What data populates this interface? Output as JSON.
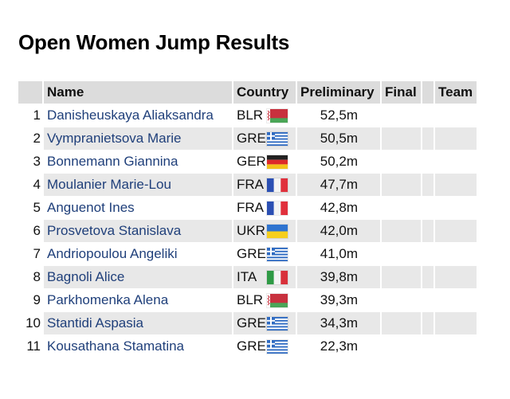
{
  "page": {
    "title": "Open Women Jump Results"
  },
  "table": {
    "headers": {
      "rank": "",
      "name": "Name",
      "country": "Country",
      "preliminary": "Preliminary",
      "final": "Final",
      "extra": "",
      "team": "Team"
    },
    "rows": [
      {
        "rank": "1",
        "name": "Danisheuskaya Aliaksandra",
        "country": "BLR",
        "flag": "belarus-flag",
        "preliminary": "52,5m",
        "final": "",
        "team": ""
      },
      {
        "rank": "2",
        "name": "Vympranietsova Marie",
        "country": "GRE",
        "flag": "greece-flag",
        "preliminary": "50,5m",
        "final": "",
        "team": ""
      },
      {
        "rank": "3",
        "name": "Bonnemann Giannina",
        "country": "GER",
        "flag": "germany-flag",
        "preliminary": "50,2m",
        "final": "",
        "team": ""
      },
      {
        "rank": "4",
        "name": "Moulanier Marie-Lou",
        "country": "FRA",
        "flag": "france-flag",
        "preliminary": "47,7m",
        "final": "",
        "team": ""
      },
      {
        "rank": "5",
        "name": "Anguenot Ines",
        "country": "FRA",
        "flag": "france-flag",
        "preliminary": "42,8m",
        "final": "",
        "team": ""
      },
      {
        "rank": "6",
        "name": "Prosvetova Stanislava",
        "country": "UKR",
        "flag": "ukraine-flag",
        "preliminary": "42,0m",
        "final": "",
        "team": ""
      },
      {
        "rank": "7",
        "name": "Andriopoulou Angeliki",
        "country": "GRE",
        "flag": "greece-flag",
        "preliminary": "41,0m",
        "final": "",
        "team": ""
      },
      {
        "rank": "8",
        "name": "Bagnoli Alice",
        "country": "ITA",
        "flag": "italy-flag",
        "preliminary": "39,8m",
        "final": "",
        "team": ""
      },
      {
        "rank": "9",
        "name": "Parkhomenka Alena",
        "country": "BLR",
        "flag": "belarus-flag",
        "preliminary": "39,3m",
        "final": "",
        "team": ""
      },
      {
        "rank": "10",
        "name": "Stantidi Aspasia",
        "country": "GRE",
        "flag": "greece-flag",
        "preliminary": "34,3m",
        "final": "",
        "team": ""
      },
      {
        "rank": "11",
        "name": "Kousathana Stamatina",
        "country": "GRE",
        "flag": "greece-flag",
        "preliminary": "22,3m",
        "final": "",
        "team": ""
      }
    ]
  },
  "colors": {
    "link": "#1f3f7a",
    "header_bg": "#dcdcdc",
    "alt_row_bg": "#e8e8e8"
  }
}
